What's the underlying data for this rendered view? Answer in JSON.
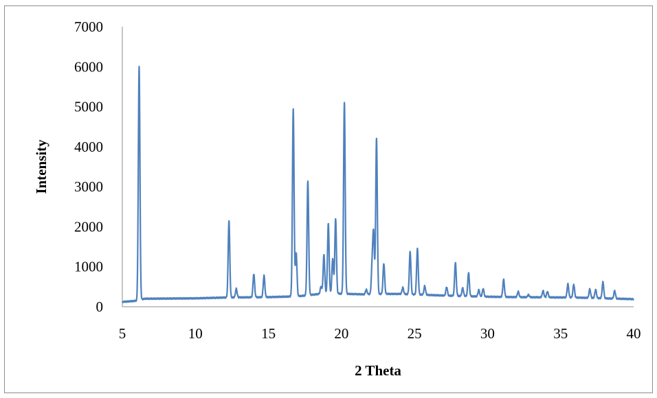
{
  "chart_data": {
    "type": "line",
    "title": "",
    "xlabel": "2 Theta",
    "ylabel": "Intensity",
    "xlim": [
      5,
      40
    ],
    "ylim": [
      0,
      7000
    ],
    "x_ticks": [
      "5",
      "10",
      "15",
      "20",
      "25",
      "30",
      "35",
      "40"
    ],
    "y_ticks": [
      "0",
      "1000",
      "2000",
      "3000",
      "4000",
      "5000",
      "6000",
      "7000"
    ],
    "grid": false,
    "legend": "none",
    "series_color": "#4f81bd",
    "baseline": [
      [
        5.0,
        120
      ],
      [
        6.0,
        150
      ],
      [
        6.5,
        200
      ],
      [
        10.0,
        210
      ],
      [
        12.0,
        230
      ],
      [
        15.0,
        240
      ],
      [
        17.0,
        260
      ],
      [
        18.5,
        320
      ],
      [
        19.5,
        330
      ],
      [
        21.5,
        310
      ],
      [
        22.5,
        320
      ],
      [
        24.0,
        320
      ],
      [
        27.0,
        280
      ],
      [
        30.0,
        250
      ],
      [
        32.0,
        240
      ],
      [
        36.0,
        230
      ],
      [
        40.0,
        190
      ]
    ],
    "peaks": [
      {
        "x": 6.15,
        "y": 6000
      },
      {
        "x": 12.3,
        "y": 2150
      },
      {
        "x": 12.8,
        "y": 450
      },
      {
        "x": 14.0,
        "y": 820
      },
      {
        "x": 14.7,
        "y": 780
      },
      {
        "x": 16.7,
        "y": 4950
      },
      {
        "x": 16.9,
        "y": 1350
      },
      {
        "x": 17.7,
        "y": 3150
      },
      {
        "x": 18.6,
        "y": 500
      },
      {
        "x": 18.8,
        "y": 1300
      },
      {
        "x": 19.1,
        "y": 2080
      },
      {
        "x": 19.4,
        "y": 1200
      },
      {
        "x": 19.6,
        "y": 2200
      },
      {
        "x": 20.2,
        "y": 5120
      },
      {
        "x": 21.7,
        "y": 430
      },
      {
        "x": 22.1,
        "y": 1000
      },
      {
        "x": 22.2,
        "y": 1780
      },
      {
        "x": 22.4,
        "y": 4200
      },
      {
        "x": 22.9,
        "y": 1080
      },
      {
        "x": 23.6,
        "y": 310
      },
      {
        "x": 24.2,
        "y": 480
      },
      {
        "x": 24.7,
        "y": 1380
      },
      {
        "x": 25.2,
        "y": 1460
      },
      {
        "x": 25.7,
        "y": 520
      },
      {
        "x": 27.2,
        "y": 490
      },
      {
        "x": 27.8,
        "y": 1100
      },
      {
        "x": 28.3,
        "y": 470
      },
      {
        "x": 28.7,
        "y": 850
      },
      {
        "x": 29.4,
        "y": 420
      },
      {
        "x": 29.7,
        "y": 450
      },
      {
        "x": 31.1,
        "y": 680
      },
      {
        "x": 32.1,
        "y": 380
      },
      {
        "x": 32.8,
        "y": 300
      },
      {
        "x": 33.8,
        "y": 400
      },
      {
        "x": 34.1,
        "y": 380
      },
      {
        "x": 35.5,
        "y": 570
      },
      {
        "x": 35.9,
        "y": 560
      },
      {
        "x": 37.0,
        "y": 440
      },
      {
        "x": 37.4,
        "y": 430
      },
      {
        "x": 37.9,
        "y": 620
      },
      {
        "x": 38.7,
        "y": 400
      }
    ]
  }
}
